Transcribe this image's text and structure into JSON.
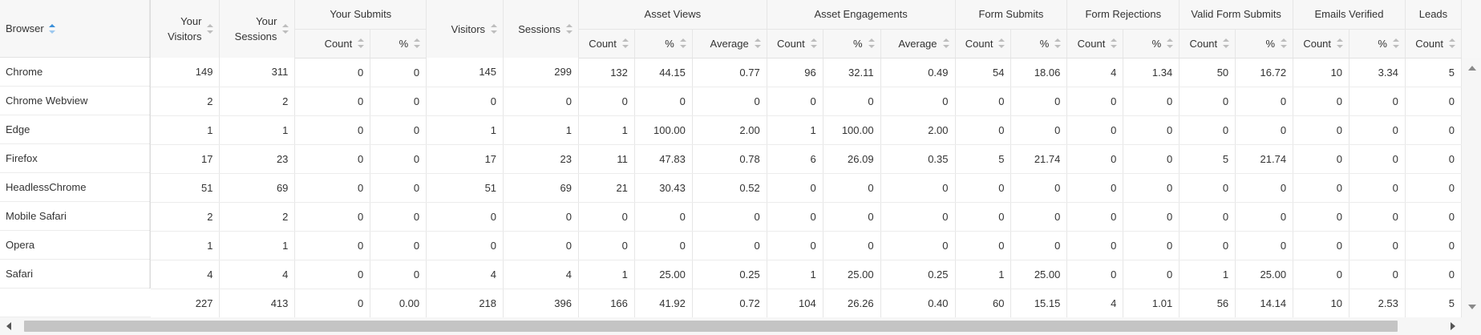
{
  "browser_header": "Browser",
  "headers": {
    "your_visitors": "Your Visitors",
    "your_sessions": "Your Sessions",
    "your_submits": "Your Submits",
    "visitors": "Visitors",
    "sessions": "Sessions",
    "asset_views": "Asset Views",
    "asset_engagements": "Asset Engagements",
    "form_submits": "Form Submits",
    "form_rejections": "Form Rejections",
    "valid_form_submits": "Valid Form Submits",
    "emails_verified": "Emails Verified",
    "leads": "Leads",
    "count": "Count",
    "percent": "%",
    "average": "Average"
  },
  "rows": [
    {
      "browser": "Chrome",
      "cells": [
        "149",
        "311",
        "0",
        "0",
        "145",
        "299",
        "132",
        "44.15",
        "0.77",
        "96",
        "32.11",
        "0.49",
        "54",
        "18.06",
        "4",
        "1.34",
        "50",
        "16.72",
        "10",
        "3.34",
        "5"
      ]
    },
    {
      "browser": "Chrome Webview",
      "cells": [
        "2",
        "2",
        "0",
        "0",
        "0",
        "0",
        "0",
        "0",
        "0",
        "0",
        "0",
        "0",
        "0",
        "0",
        "0",
        "0",
        "0",
        "0",
        "0",
        "0",
        "0"
      ]
    },
    {
      "browser": "Edge",
      "cells": [
        "1",
        "1",
        "0",
        "0",
        "1",
        "1",
        "1",
        "100.00",
        "2.00",
        "1",
        "100.00",
        "2.00",
        "0",
        "0",
        "0",
        "0",
        "0",
        "0",
        "0",
        "0",
        "0"
      ]
    },
    {
      "browser": "Firefox",
      "cells": [
        "17",
        "23",
        "0",
        "0",
        "17",
        "23",
        "11",
        "47.83",
        "0.78",
        "6",
        "26.09",
        "0.35",
        "5",
        "21.74",
        "0",
        "0",
        "5",
        "21.74",
        "0",
        "0",
        "0"
      ]
    },
    {
      "browser": "HeadlessChrome",
      "cells": [
        "51",
        "69",
        "0",
        "0",
        "51",
        "69",
        "21",
        "30.43",
        "0.52",
        "0",
        "0",
        "0",
        "0",
        "0",
        "0",
        "0",
        "0",
        "0",
        "0",
        "0",
        "0"
      ]
    },
    {
      "browser": "Mobile Safari",
      "cells": [
        "2",
        "2",
        "0",
        "0",
        "0",
        "0",
        "0",
        "0",
        "0",
        "0",
        "0",
        "0",
        "0",
        "0",
        "0",
        "0",
        "0",
        "0",
        "0",
        "0",
        "0"
      ]
    },
    {
      "browser": "Opera",
      "cells": [
        "1",
        "1",
        "0",
        "0",
        "0",
        "0",
        "0",
        "0",
        "0",
        "0",
        "0",
        "0",
        "0",
        "0",
        "0",
        "0",
        "0",
        "0",
        "0",
        "0",
        "0"
      ]
    },
    {
      "browser": "Safari",
      "cells": [
        "4",
        "4",
        "0",
        "0",
        "4",
        "4",
        "1",
        "25.00",
        "0.25",
        "1",
        "25.00",
        "0.25",
        "1",
        "25.00",
        "0",
        "0",
        "1",
        "25.00",
        "0",
        "0",
        "0"
      ]
    }
  ],
  "totals": [
    "227",
    "413",
    "0",
    "0.00",
    "218",
    "396",
    "166",
    "41.92",
    "0.72",
    "104",
    "26.26",
    "0.40",
    "60",
    "15.15",
    "4",
    "1.01",
    "56",
    "14.14",
    "10",
    "2.53",
    "5"
  ],
  "colors": {
    "sort_active": "#3a8fd9",
    "header_bg": "#f7f7f7",
    "scroll_thumb": "#c4c4c4"
  }
}
